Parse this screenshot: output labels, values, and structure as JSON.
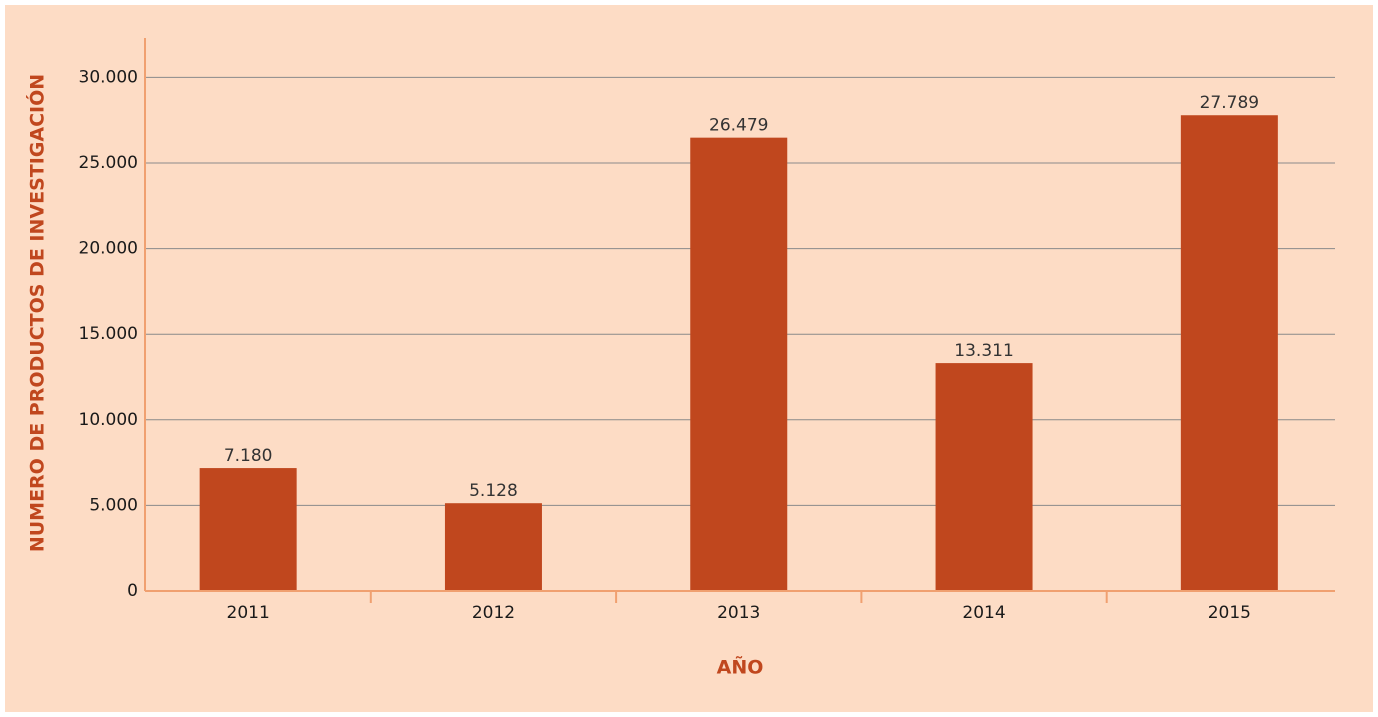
{
  "chart_data": {
    "type": "bar",
    "x_label": "AÑO",
    "y_label": "NUMERO DE PRODUCTOS DE INVESTIGACIÓN",
    "categories": [
      "2011",
      "2012",
      "2013",
      "2014",
      "2015"
    ],
    "values": [
      7180,
      5128,
      26479,
      13311,
      27789
    ],
    "value_labels": [
      "7.180",
      "5.128",
      "26.479",
      "13.311",
      "27.789"
    ],
    "color": "#c0471e",
    "ylim": [
      0,
      32300
    ],
    "yticks": [
      0,
      {
        "value": 5000,
        "label": "5.000"
      },
      {
        "value": 10000,
        "label": "10.000"
      },
      {
        "value": 15000,
        "label": "15.000"
      },
      {
        "value": 20000,
        "label": "20.000"
      },
      {
        "value": 25000,
        "label": "25.000"
      },
      {
        "value": 30000,
        "label": "30.000"
      }
    ],
    "grid": true
  }
}
